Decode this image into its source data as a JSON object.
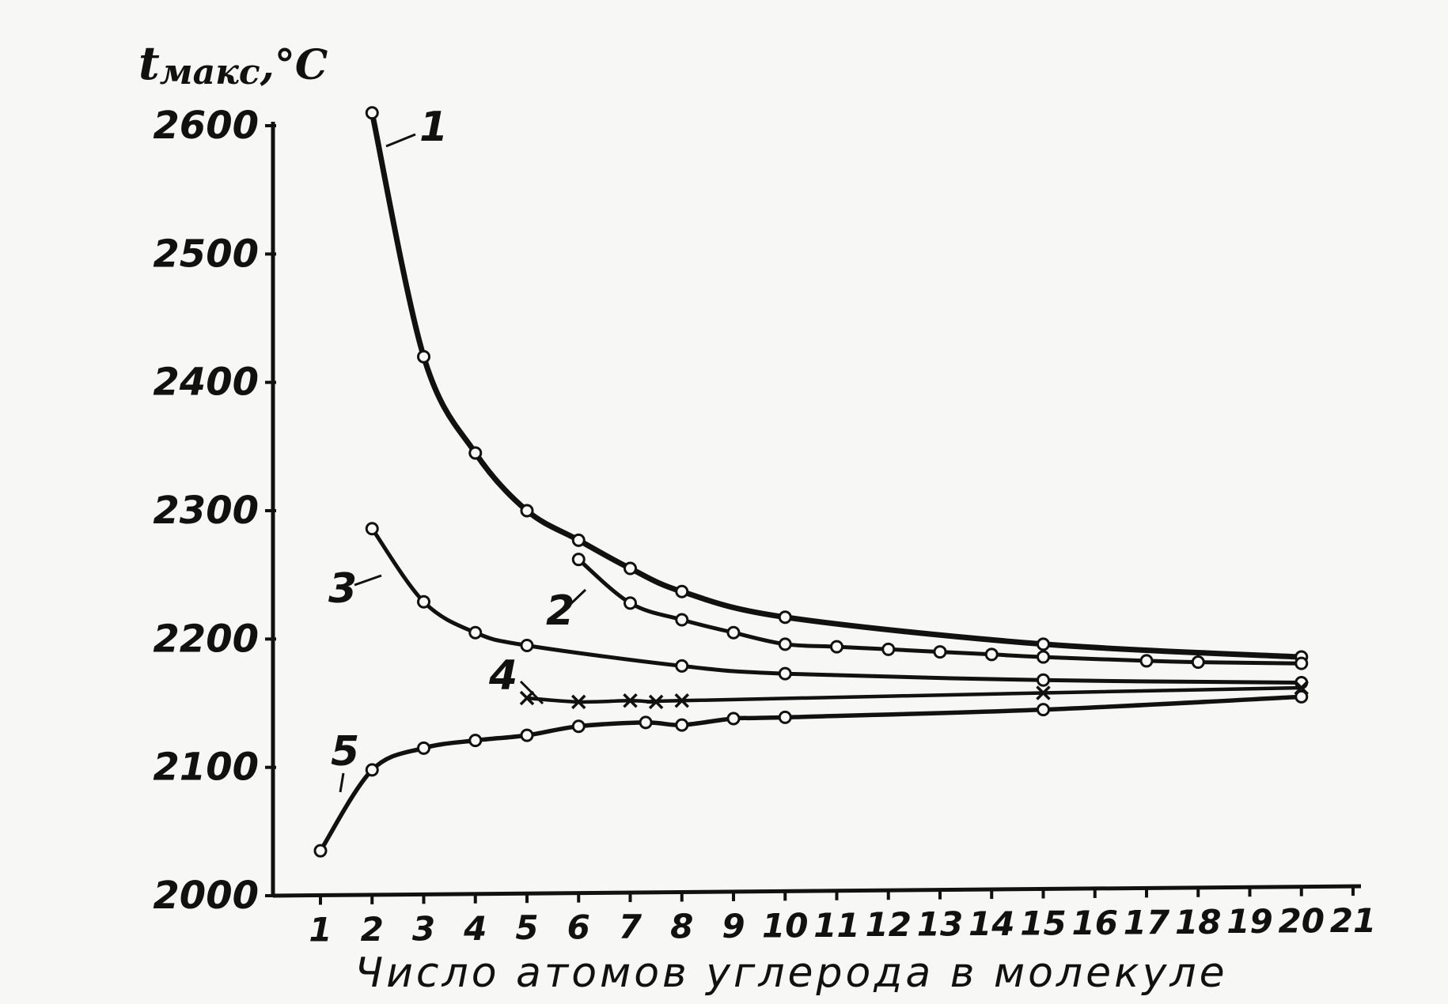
{
  "chart_data": {
    "type": "line",
    "title": "",
    "ylabel": "tмакс,°C",
    "ylabel_main": "t",
    "ylabel_sub": "макс",
    "ylabel_unit": ",°C",
    "xlabel": "Число атомов углерода в молекуле",
    "ylim": [
      2000,
      2600
    ],
    "xlim": [
      1,
      21
    ],
    "yticks": [
      2000,
      2100,
      2200,
      2300,
      2400,
      2500,
      2600
    ],
    "xticks": [
      1,
      2,
      3,
      4,
      5,
      6,
      7,
      8,
      9,
      10,
      11,
      12,
      13,
      14,
      15,
      16,
      17,
      18,
      19,
      20,
      21
    ],
    "grid": false,
    "series": [
      {
        "name": "1",
        "marker": "o",
        "x": [
          2,
          3,
          4,
          5,
          6,
          7,
          8,
          10,
          15,
          20
        ],
        "y": [
          2610,
          2420,
          2345,
          2300,
          2277,
          2255,
          2237,
          2217,
          2196,
          2186
        ]
      },
      {
        "name": "2",
        "marker": "o",
        "x": [
          6,
          7,
          8,
          9,
          10,
          11,
          12,
          13,
          14,
          15,
          17,
          18,
          20
        ],
        "y": [
          2262,
          2228,
          2215,
          2205,
          2196,
          2194,
          2192,
          2190,
          2188,
          2186,
          2183,
          2182,
          2181
        ]
      },
      {
        "name": "3",
        "marker": "o",
        "x": [
          2,
          3,
          4,
          5,
          8,
          10,
          15,
          20
        ],
        "y": [
          2286,
          2229,
          2205,
          2195,
          2179,
          2173,
          2168,
          2166
        ]
      },
      {
        "name": "4",
        "marker": "x",
        "x": [
          5,
          6,
          7,
          7.5,
          8,
          15,
          20
        ],
        "y": [
          2154,
          2151,
          2152,
          2151,
          2152,
          2158,
          2162
        ]
      },
      {
        "name": "5",
        "marker": "o",
        "x": [
          1,
          2,
          3,
          4,
          5,
          6,
          7.3,
          8,
          9,
          10,
          15,
          20
        ],
        "y": [
          2035,
          2098,
          2115,
          2121,
          2125,
          2132,
          2135,
          2133,
          2138,
          2139,
          2145,
          2155
        ]
      }
    ]
  }
}
